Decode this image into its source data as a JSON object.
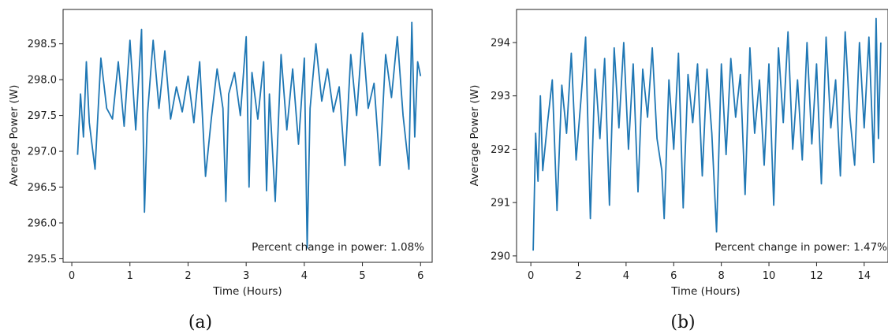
{
  "chart_data": [
    {
      "type": "line",
      "panel_label": "(a)",
      "xlabel": "Time (Hours)",
      "ylabel": "Average Power (W)",
      "xlim": [
        -0.15,
        6.2
      ],
      "ylim": [
        295.45,
        298.98
      ],
      "xticks": [
        0,
        1,
        2,
        3,
        4,
        5,
        6
      ],
      "yticks": [
        295.5,
        296.0,
        296.5,
        297.0,
        297.5,
        298.0,
        298.5
      ],
      "ytick_labels": [
        "295.5",
        "296.0",
        "296.5",
        "297.0",
        "297.5",
        "298.0",
        "298.5"
      ],
      "annotation": "Percent change in power: 1.08%",
      "color": "#1f77b4",
      "series": [
        {
          "x": [
            0.1,
            0.15,
            0.2,
            0.25,
            0.3,
            0.4,
            0.5,
            0.6,
            0.7,
            0.8,
            0.9,
            1.0,
            1.1,
            1.2,
            1.25,
            1.3,
            1.4,
            1.5,
            1.6,
            1.7,
            1.8,
            1.9,
            2.0,
            2.1,
            2.2,
            2.3,
            2.4,
            2.5,
            2.6,
            2.65,
            2.7,
            2.8,
            2.9,
            3.0,
            3.05,
            3.1,
            3.2,
            3.3,
            3.35,
            3.4,
            3.5,
            3.6,
            3.7,
            3.8,
            3.9,
            4.0,
            4.05,
            4.1,
            4.2,
            4.3,
            4.4,
            4.5,
            4.6,
            4.7,
            4.8,
            4.9,
            5.0,
            5.1,
            5.2,
            5.3,
            5.4,
            5.5,
            5.6,
            5.7,
            5.8,
            5.85,
            5.9,
            5.95,
            6.0
          ],
          "y": [
            296.95,
            297.8,
            297.2,
            298.25,
            297.4,
            296.75,
            298.3,
            297.6,
            297.45,
            298.25,
            297.35,
            298.55,
            297.3,
            298.7,
            296.15,
            297.5,
            298.55,
            297.6,
            298.4,
            297.45,
            297.9,
            297.55,
            298.05,
            297.4,
            298.25,
            296.65,
            297.45,
            298.15,
            297.6,
            296.3,
            297.8,
            298.1,
            297.5,
            298.6,
            296.5,
            298.1,
            297.45,
            298.25,
            296.45,
            297.8,
            296.3,
            298.35,
            297.3,
            298.15,
            297.1,
            298.3,
            295.65,
            297.6,
            298.5,
            297.7,
            298.15,
            297.55,
            297.9,
            296.8,
            298.35,
            297.5,
            298.65,
            297.6,
            297.95,
            296.8,
            298.35,
            297.75,
            298.6,
            297.5,
            296.75,
            298.8,
            297.2,
            298.25,
            298.05
          ]
        }
      ]
    },
    {
      "type": "line",
      "panel_label": "(b)",
      "xlabel": "Time (Hours)",
      "ylabel": "Average Power (W)",
      "xlim": [
        -0.6,
        15.0
      ],
      "ylim": [
        289.88,
        294.62
      ],
      "xticks": [
        0,
        2,
        4,
        6,
        8,
        10,
        12,
        14
      ],
      "yticks": [
        290,
        291,
        292,
        293,
        294
      ],
      "ytick_labels": [
        "290",
        "291",
        "292",
        "293",
        "294"
      ],
      "annotation": "Percent change in power: 1.47%",
      "color": "#1f77b4",
      "series": [
        {
          "x": [
            0.1,
            0.2,
            0.3,
            0.4,
            0.5,
            0.7,
            0.9,
            1.1,
            1.3,
            1.5,
            1.7,
            1.9,
            2.1,
            2.3,
            2.5,
            2.7,
            2.9,
            3.1,
            3.3,
            3.5,
            3.7,
            3.9,
            4.1,
            4.3,
            4.5,
            4.7,
            4.9,
            5.1,
            5.3,
            5.5,
            5.6,
            5.8,
            6.0,
            6.2,
            6.4,
            6.6,
            6.8,
            7.0,
            7.2,
            7.4,
            7.6,
            7.8,
            8.0,
            8.2,
            8.4,
            8.6,
            8.8,
            9.0,
            9.2,
            9.4,
            9.6,
            9.8,
            10.0,
            10.2,
            10.4,
            10.6,
            10.8,
            11.0,
            11.2,
            11.4,
            11.6,
            11.8,
            12.0,
            12.2,
            12.4,
            12.6,
            12.8,
            13.0,
            13.2,
            13.4,
            13.6,
            13.8,
            14.0,
            14.2,
            14.4,
            14.5,
            14.6,
            14.7
          ],
          "y": [
            290.1,
            292.3,
            291.4,
            293.0,
            291.6,
            292.5,
            293.3,
            290.85,
            293.2,
            292.3,
            293.8,
            291.8,
            292.9,
            294.1,
            290.7,
            293.5,
            292.2,
            293.7,
            290.95,
            293.9,
            292.4,
            294.0,
            292.0,
            293.6,
            291.2,
            293.5,
            292.6,
            293.9,
            292.2,
            291.6,
            290.7,
            293.3,
            292.0,
            293.8,
            290.9,
            293.4,
            292.5,
            293.6,
            291.5,
            293.5,
            292.3,
            290.45,
            293.6,
            291.9,
            293.7,
            292.6,
            293.4,
            291.15,
            293.9,
            292.3,
            293.3,
            291.7,
            293.6,
            290.95,
            293.9,
            292.5,
            294.2,
            292.0,
            293.3,
            291.8,
            294.0,
            292.1,
            293.6,
            291.35,
            294.1,
            292.4,
            293.3,
            291.5,
            294.2,
            292.6,
            291.7,
            294.0,
            292.4,
            294.1,
            291.75,
            294.45,
            292.2,
            294.0
          ]
        }
      ]
    }
  ]
}
